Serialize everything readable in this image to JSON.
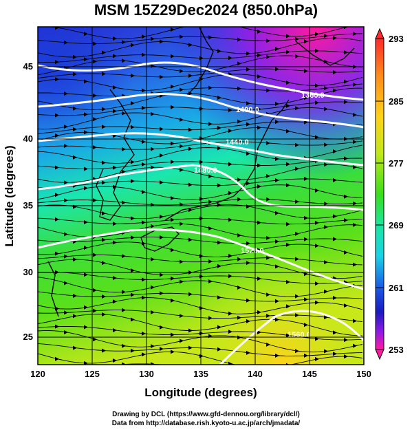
{
  "title": "MSM 15Z29Dec2024 (850.0hPa)",
  "map": {
    "xlabel": "Longitude (degrees)",
    "ylabel": "Latitude  (degrees)",
    "lon_range": [
      120,
      150
    ],
    "lat_range": [
      23,
      48
    ],
    "x_ticks": [
      "120",
      "125",
      "130",
      "135",
      "140",
      "145",
      "150"
    ],
    "y_ticks": [
      "25",
      "30",
      "35",
      "40",
      "45"
    ],
    "grid": true,
    "field": "temperature (K) shaded, geopotential height contours (m), wind streamlines"
  },
  "colorbar": {
    "labels": [
      "293",
      "285",
      "277",
      "269",
      "261",
      "253"
    ],
    "range": [
      253,
      293
    ],
    "colors": [
      "#ff2a2a",
      "#ff9c1a",
      "#ffd21a",
      "#c6e81a",
      "#4ddc1a",
      "#1ae6a0",
      "#1ad2e6",
      "#1a6ae6",
      "#1a1ac8",
      "#7a1ae6",
      "#e61ae6",
      "#ff1aa0"
    ]
  },
  "contours": [
    {
      "label": "1360.0"
    },
    {
      "label": "1400.0"
    },
    {
      "label": "1440.0"
    },
    {
      "label": "1480.0"
    },
    {
      "label": "1520.0"
    },
    {
      "label": "1560.0"
    }
  ],
  "credits": {
    "line1": "Drawing by DCL (https://www.gfd-dennou.org/library/dcl/)",
    "line2": "Data from http://database.rish.kyoto-u.ac.jp/arch/jmadata/"
  }
}
